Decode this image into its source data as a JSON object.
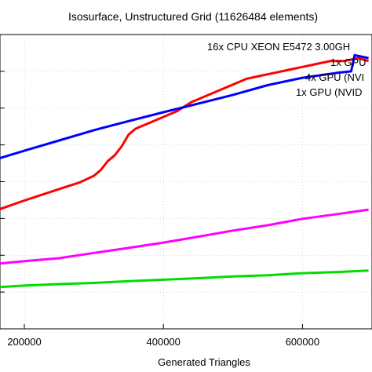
{
  "chart_data": {
    "type": "line",
    "title": "Isosurface, Unstructured Grid (11626484 elements)",
    "xlabel": "Generated Triangles",
    "ylabel": "",
    "xlim": [
      165000,
      700000
    ],
    "ylim": [
      0,
      100
    ],
    "x_ticks": [
      200000,
      400000,
      600000
    ],
    "x_tick_labels": [
      "200000",
      "400000",
      "600000"
    ],
    "grid": true,
    "legend_position": "top-right",
    "series": [
      {
        "name": "16x CPU XEON E5472 3.00GH",
        "color": "#ff0000",
        "points": [
          [
            165000,
            40.7
          ],
          [
            200000,
            43.6
          ],
          [
            250000,
            47.5
          ],
          [
            280000,
            49.8
          ],
          [
            300000,
            52
          ],
          [
            310000,
            54
          ],
          [
            320000,
            57
          ],
          [
            330000,
            59
          ],
          [
            340000,
            62
          ],
          [
            350000,
            66
          ],
          [
            360000,
            68
          ],
          [
            370000,
            69
          ],
          [
            380000,
            70
          ],
          [
            400000,
            72
          ],
          [
            420000,
            74
          ],
          [
            440000,
            77
          ],
          [
            460000,
            79
          ],
          [
            480000,
            81
          ],
          [
            500000,
            83
          ],
          [
            520000,
            85
          ],
          [
            540000,
            86
          ],
          [
            560000,
            87
          ],
          [
            580000,
            88
          ],
          [
            600000,
            89
          ],
          [
            620000,
            90
          ],
          [
            640000,
            91
          ],
          [
            660000,
            91
          ],
          [
            680000,
            92
          ],
          [
            695000,
            91
          ]
        ]
      },
      {
        "name": "1x GPU",
        "color": "#0000ff",
        "points": [
          [
            165000,
            58
          ],
          [
            200000,
            60.5
          ],
          [
            250000,
            64
          ],
          [
            300000,
            67.5
          ],
          [
            350000,
            70.6
          ],
          [
            400000,
            73.6
          ],
          [
            450000,
            76.5
          ],
          [
            500000,
            79.5
          ],
          [
            550000,
            82.8
          ],
          [
            600000,
            85.3
          ],
          [
            650000,
            87
          ],
          [
            670000,
            87.5
          ],
          [
            675000,
            93
          ],
          [
            695000,
            92
          ]
        ]
      },
      {
        "name": "4x GPU (NVI",
        "color": "#ff00ff",
        "points": [
          [
            165000,
            22.2
          ],
          [
            200000,
            23
          ],
          [
            250000,
            24
          ],
          [
            300000,
            25.8
          ],
          [
            350000,
            27.5
          ],
          [
            400000,
            29.3
          ],
          [
            450000,
            31.3
          ],
          [
            500000,
            33.4
          ],
          [
            550000,
            35.2
          ],
          [
            600000,
            37.4
          ],
          [
            650000,
            39
          ],
          [
            695000,
            40.5
          ]
        ]
      },
      {
        "name": "1x GPU (NVID",
        "color": "#00dd00",
        "points": [
          [
            165000,
            14.2
          ],
          [
            200000,
            14.7
          ],
          [
            250000,
            15.2
          ],
          [
            300000,
            15.6
          ],
          [
            350000,
            16.2
          ],
          [
            400000,
            16.7
          ],
          [
            450000,
            17.2
          ],
          [
            500000,
            17.8
          ],
          [
            550000,
            18.2
          ],
          [
            600000,
            18.9
          ],
          [
            650000,
            19.3
          ],
          [
            695000,
            19.8
          ]
        ]
      }
    ]
  }
}
